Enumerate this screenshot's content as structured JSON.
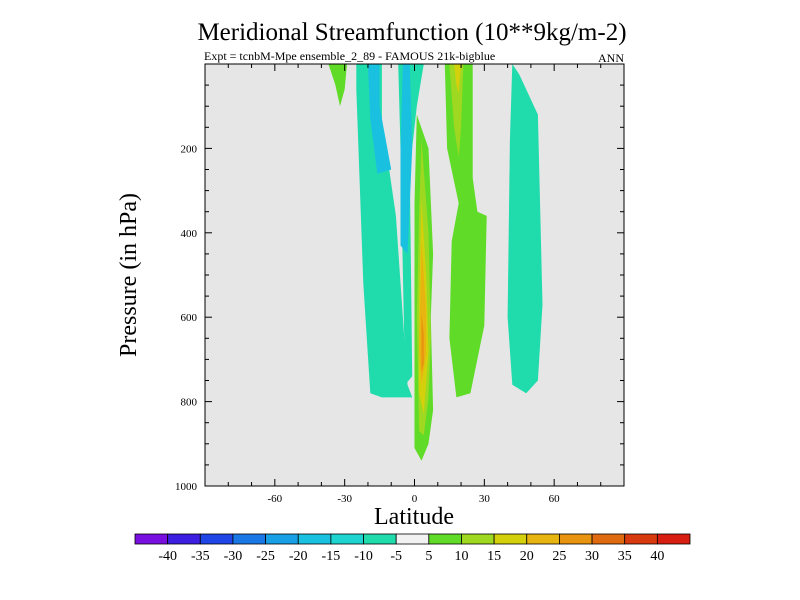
{
  "chart_data": {
    "type": "contour",
    "title": "Meridional Streamfunction (10**9kg/m-2)",
    "subtitle_left": "Expt = tcnbM-Mpe ensemble_2_89 - FAMOUS 21k-bigblue",
    "subtitle_right": "ANN",
    "xlabel": "Latitude",
    "ylabel": "Pressure (in hPa)",
    "xlim": [
      -90,
      90
    ],
    "ylim": [
      1000,
      0
    ],
    "x_ticks": [
      -60,
      -30,
      0,
      30,
      60
    ],
    "y_ticks": [
      200,
      400,
      600,
      800,
      1000
    ],
    "x_minor_step": 10,
    "y_minor_step": 50,
    "background": "#e6e6e6",
    "levels": [
      {
        "label": "-40",
        "color": "#7a10e0"
      },
      {
        "label": "-35",
        "color": "#3c1fe0"
      },
      {
        "label": "-30",
        "color": "#1f45e6"
      },
      {
        "label": "-25",
        "color": "#1a78e6"
      },
      {
        "label": "-20",
        "color": "#17a0e6"
      },
      {
        "label": "-15",
        "color": "#1ac0e0"
      },
      {
        "label": "-10",
        "color": "#1ed4d0"
      },
      {
        "label": "-5",
        "color": "#20dcac"
      },
      {
        "label": "5",
        "color": "#f2f2f2"
      },
      {
        "label": "10",
        "color": "#60dc28"
      },
      {
        "label": "15",
        "color": "#9fd820"
      },
      {
        "label": "20",
        "color": "#d4d00c"
      },
      {
        "label": "25",
        "color": "#e8b410"
      },
      {
        "label": "30",
        "color": "#e89410"
      },
      {
        "label": "35",
        "color": "#e06a10"
      },
      {
        "label": "40",
        "color": "#d83a10"
      },
      {
        "label": "",
        "color": "#d81e10"
      }
    ],
    "regions": [
      {
        "name": "sh-outer-negative-cell",
        "color": "#20dcac",
        "points": [
          [
            -25,
            0
          ],
          [
            -14,
            0
          ],
          [
            -14,
            130
          ],
          [
            -8,
            360
          ],
          [
            -3,
            760
          ],
          [
            -1,
            790
          ],
          [
            -14,
            790
          ],
          [
            -19,
            780
          ],
          [
            -22,
            520
          ],
          [
            -24,
            210
          ],
          [
            -25,
            60
          ]
        ]
      },
      {
        "name": "upper-negative-core",
        "color": "#1ac0e0",
        "points": [
          [
            -20,
            0
          ],
          [
            -15,
            0
          ],
          [
            -15,
            100
          ],
          [
            -10,
            250
          ],
          [
            -16,
            260
          ],
          [
            -19,
            130
          ]
        ]
      },
      {
        "name": "deep-negative-strip",
        "color": "#20dcac",
        "points": [
          [
            -7,
            0
          ],
          [
            4,
            0
          ],
          [
            1,
            100
          ],
          [
            -2,
            250
          ],
          [
            -1,
            740
          ],
          [
            -4,
            760
          ],
          [
            -5,
            500
          ],
          [
            -6,
            200
          ]
        ]
      },
      {
        "name": "deep-negative-core",
        "color": "#1ac0e0",
        "points": [
          [
            -5,
            0
          ],
          [
            -2,
            0
          ],
          [
            -1,
            200
          ],
          [
            -3,
            450
          ],
          [
            -6,
            430
          ],
          [
            -6,
            200
          ]
        ]
      },
      {
        "name": "sh-upper-positive",
        "color": "#60dc28",
        "points": [
          [
            -37,
            0
          ],
          [
            -29,
            0
          ],
          [
            -30,
            60
          ],
          [
            -32,
            100
          ],
          [
            -34,
            50
          ]
        ]
      },
      {
        "name": "equatorial-positive-cell",
        "color": "#60dc28",
        "points": [
          [
            1,
            120
          ],
          [
            6,
            200
          ],
          [
            8,
            450
          ],
          [
            7,
            600
          ],
          [
            8,
            820
          ],
          [
            6,
            900
          ],
          [
            3,
            940
          ],
          [
            0,
            910
          ],
          [
            0,
            700
          ],
          [
            0,
            330
          ]
        ]
      },
      {
        "name": "equatorial-cell-15",
        "color": "#9fd820",
        "points": [
          [
            3,
            180
          ],
          [
            6,
            400
          ],
          [
            7,
            650
          ],
          [
            6,
            790
          ],
          [
            4,
            880
          ],
          [
            2,
            870
          ],
          [
            1,
            600
          ],
          [
            2,
            350
          ]
        ]
      },
      {
        "name": "equatorial-cell-20",
        "color": "#d4d00c",
        "points": [
          [
            3,
            320
          ],
          [
            5,
            500
          ],
          [
            6,
            680
          ],
          [
            4,
            830
          ],
          [
            2,
            780
          ],
          [
            2,
            560
          ]
        ]
      },
      {
        "name": "equatorial-cell-25",
        "color": "#e8b410",
        "points": [
          [
            3,
            420
          ],
          [
            5,
            580
          ],
          [
            5,
            690
          ],
          [
            3,
            760
          ],
          [
            2,
            680
          ]
        ]
      },
      {
        "name": "equatorial-cell-30",
        "color": "#e89410",
        "points": [
          [
            3,
            590
          ],
          [
            4,
            640
          ],
          [
            4,
            710
          ],
          [
            3,
            730
          ]
        ]
      },
      {
        "name": "nh-upper-positive",
        "color": "#60dc28",
        "points": [
          [
            13,
            0
          ],
          [
            25,
            0
          ],
          [
            25,
            270
          ],
          [
            27,
            350
          ],
          [
            31,
            360
          ],
          [
            30,
            620
          ],
          [
            24,
            780
          ],
          [
            18,
            790
          ],
          [
            15,
            650
          ],
          [
            16,
            420
          ],
          [
            19,
            330
          ],
          [
            14,
            200
          ]
        ]
      },
      {
        "name": "nh-upper-positive-15",
        "color": "#9fd820",
        "points": [
          [
            15,
            0
          ],
          [
            21,
            0
          ],
          [
            20,
            150
          ],
          [
            19,
            220
          ],
          [
            17,
            150
          ]
        ]
      },
      {
        "name": "nh-upper-positive-20",
        "color": "#d4d00c",
        "points": [
          [
            17,
            0
          ],
          [
            20,
            0
          ],
          [
            19,
            70
          ],
          [
            18,
            50
          ]
        ]
      },
      {
        "name": "nh-negative-cell",
        "color": "#20dcac",
        "points": [
          [
            42,
            0
          ],
          [
            45,
            25
          ],
          [
            53,
            120
          ],
          [
            55,
            570
          ],
          [
            53,
            750
          ],
          [
            48,
            780
          ],
          [
            42,
            760
          ],
          [
            40,
            600
          ],
          [
            41,
            180
          ]
        ]
      }
    ]
  }
}
